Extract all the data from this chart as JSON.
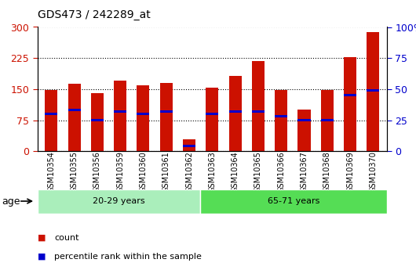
{
  "title": "GDS473 / 242289_at",
  "samples": [
    "GSM10354",
    "GSM10355",
    "GSM10356",
    "GSM10359",
    "GSM10360",
    "GSM10361",
    "GSM10362",
    "GSM10363",
    "GSM10364",
    "GSM10365",
    "GSM10366",
    "GSM10367",
    "GSM10368",
    "GSM10369",
    "GSM10370"
  ],
  "counts": [
    147,
    163,
    140,
    170,
    160,
    165,
    28,
    153,
    182,
    218,
    148,
    100,
    148,
    228,
    288
  ],
  "percentiles": [
    30,
    33,
    25,
    32,
    30,
    32,
    4,
    30,
    32,
    32,
    28,
    25,
    25,
    45,
    49
  ],
  "groups": [
    {
      "label": "20-29 years",
      "start": 0,
      "end": 7,
      "color": "#88ee88"
    },
    {
      "label": "65-71 years",
      "start": 7,
      "end": 15,
      "color": "#44cc44"
    }
  ],
  "ylim_left": [
    0,
    300
  ],
  "ylim_right": [
    0,
    100
  ],
  "yticks_left": [
    0,
    75,
    150,
    225,
    300
  ],
  "yticks_right": [
    0,
    25,
    50,
    75,
    100
  ],
  "bar_color": "#cc1100",
  "percentile_color": "#0000cc",
  "age_label": "age",
  "legend_count": "count",
  "legend_percentile": "percentile rank within the sample",
  "left_tick_color": "#cc1100",
  "right_tick_color": "#0000cc",
  "grid_color": "#000000",
  "bg_color": "#ffffff",
  "plot_bg": "#ffffff",
  "bar_width": 0.55,
  "group1_color": "#aaeebb",
  "group2_color": "#55dd55"
}
